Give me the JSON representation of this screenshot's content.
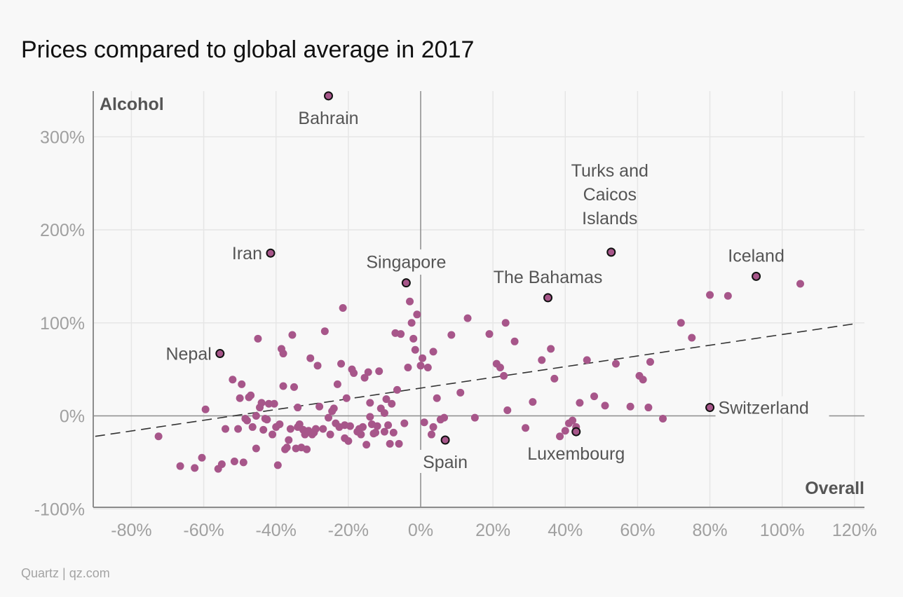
{
  "title": "Prices compared to global average in 2017",
  "source": "Quartz | qz.com",
  "colors": {
    "dot": "#a7568a",
    "highlight_dot": "#a7568a",
    "highlight_stroke": "#111111",
    "grid": "#e6e6e6",
    "axis": "#8c8c8c",
    "trend": "#333333"
  },
  "chart_data": {
    "type": "scatter",
    "title": "Prices compared to global average in 2017",
    "xlabel": "Overall",
    "ylabel": "Alcohol",
    "xlim": [
      -90,
      122
    ],
    "ylim": [
      -100,
      350
    ],
    "xticks": [
      -80,
      -60,
      -40,
      -20,
      0,
      20,
      40,
      60,
      80,
      100,
      120
    ],
    "yticks": [
      -100,
      0,
      100,
      200,
      300
    ],
    "xtick_labels": [
      "-80%",
      "-60%",
      "-40%",
      "-20%",
      "0%",
      "20%",
      "40%",
      "60%",
      "80%",
      "100%",
      "120%"
    ],
    "ytick_labels": [
      "-100%",
      "0%",
      "100%",
      "200%",
      "300%"
    ],
    "grid": true,
    "trendline": {
      "x": [
        -90,
        120
      ],
      "y": [
        -22,
        99
      ]
    },
    "labeled_points": [
      {
        "label": "Bahrain",
        "x": -25.5,
        "y": 344
      },
      {
        "label": "Iran",
        "x": -41.5,
        "y": 175
      },
      {
        "label": "Singapore",
        "x": -4,
        "y": 143
      },
      {
        "label": "Nepal",
        "x": -55.5,
        "y": 67
      },
      {
        "label": "Spain",
        "x": 6.8,
        "y": -26
      },
      {
        "label": "Luxembourg",
        "x": 43,
        "y": -17
      },
      {
        "label": "The Bahamas",
        "x": 35.2,
        "y": 127
      },
      {
        "label": "Turks and Caicos Islands",
        "x": 52.7,
        "y": 176
      },
      {
        "label": "Iceland",
        "x": 92.8,
        "y": 150
      },
      {
        "label": "Switzerland",
        "x": 80,
        "y": 9
      }
    ],
    "points": [
      [
        -72.5,
        -22
      ],
      [
        -66.5,
        -54
      ],
      [
        -62.5,
        -56
      ],
      [
        -60.5,
        -45
      ],
      [
        -59.5,
        7
      ],
      [
        -56,
        -57
      ],
      [
        -55,
        -52
      ],
      [
        -54,
        -14
      ],
      [
        -52,
        39
      ],
      [
        -51.5,
        -49
      ],
      [
        -50.5,
        -14
      ],
      [
        -50,
        19
      ],
      [
        -49.5,
        34
      ],
      [
        -49,
        -50
      ],
      [
        -48.5,
        -3
      ],
      [
        -48,
        -5
      ],
      [
        -47.5,
        20
      ],
      [
        -47,
        22
      ],
      [
        -46.5,
        -12
      ],
      [
        -45.5,
        -35
      ],
      [
        -45.5,
        0
      ],
      [
        -45,
        83
      ],
      [
        -44.5,
        9
      ],
      [
        -44,
        14
      ],
      [
        -43.5,
        -15
      ],
      [
        -43,
        -3
      ],
      [
        -42.5,
        -4
      ],
      [
        -42,
        13
      ],
      [
        -41,
        -20
      ],
      [
        -40.5,
        13
      ],
      [
        -40,
        -12
      ],
      [
        -39.5,
        -53
      ],
      [
        -39,
        -9
      ],
      [
        -38.5,
        72
      ],
      [
        -38,
        67
      ],
      [
        -38,
        32
      ],
      [
        -37.5,
        -36
      ],
      [
        -37,
        -34
      ],
      [
        -36.5,
        -26
      ],
      [
        -36,
        -14
      ],
      [
        -35.5,
        87
      ],
      [
        -35,
        31
      ],
      [
        -34.5,
        -35
      ],
      [
        -34,
        -12
      ],
      [
        -34,
        9
      ],
      [
        -33.5,
        -9
      ],
      [
        -33,
        -34
      ],
      [
        -32.5,
        -15
      ],
      [
        -32,
        -20
      ],
      [
        -31.5,
        -36
      ],
      [
        -31,
        -16
      ],
      [
        -30.5,
        62
      ],
      [
        -30,
        -20
      ],
      [
        -29.5,
        -18
      ],
      [
        -29,
        -14
      ],
      [
        -28.5,
        54
      ],
      [
        -28,
        10
      ],
      [
        -27,
        -14
      ],
      [
        -26.5,
        91
      ],
      [
        -25.5,
        -2
      ],
      [
        -25,
        -20
      ],
      [
        -24.5,
        5
      ],
      [
        -24,
        8
      ],
      [
        -23.5,
        -8
      ],
      [
        -23,
        34
      ],
      [
        -22.5,
        -12
      ],
      [
        -22,
        56
      ],
      [
        -21.5,
        116
      ],
      [
        -21,
        -24
      ],
      [
        -21,
        -10
      ],
      [
        -20.5,
        19
      ],
      [
        -20,
        -27
      ],
      [
        -19.5,
        -11
      ],
      [
        -19,
        50
      ],
      [
        -18.5,
        46
      ],
      [
        -17.5,
        -17
      ],
      [
        -17,
        -14
      ],
      [
        -16.5,
        -20
      ],
      [
        -16,
        -12
      ],
      [
        -15.5,
        41
      ],
      [
        -15,
        -31
      ],
      [
        -14.5,
        47
      ],
      [
        -14,
        -1
      ],
      [
        -14,
        14
      ],
      [
        -13.5,
        -9
      ],
      [
        -13,
        -19
      ],
      [
        -12.5,
        -18
      ],
      [
        -12,
        -11
      ],
      [
        -11.5,
        48
      ],
      [
        -11,
        8
      ],
      [
        -10,
        -17
      ],
      [
        -10,
        3
      ],
      [
        -9.5,
        18
      ],
      [
        -9,
        -10
      ],
      [
        -8.5,
        -30
      ],
      [
        -8,
        13
      ],
      [
        -7.5,
        -18
      ],
      [
        -7,
        89
      ],
      [
        -6.5,
        28
      ],
      [
        -6,
        -30
      ],
      [
        -5.5,
        88
      ],
      [
        -4.5,
        -8
      ],
      [
        -3.5,
        52
      ],
      [
        -3,
        123
      ],
      [
        -2.5,
        100
      ],
      [
        -2,
        83
      ],
      [
        -1.5,
        71
      ],
      [
        -1,
        109
      ],
      [
        0,
        54
      ],
      [
        0.5,
        62
      ],
      [
        1,
        -7
      ],
      [
        2,
        52
      ],
      [
        3,
        -20
      ],
      [
        3.5,
        69
      ],
      [
        3.5,
        -12
      ],
      [
        4.5,
        19
      ],
      [
        5.5,
        -4
      ],
      [
        6.5,
        -2
      ],
      [
        8.5,
        87
      ],
      [
        11,
        25
      ],
      [
        13,
        105
      ],
      [
        15,
        -2
      ],
      [
        19,
        88
      ],
      [
        21,
        56
      ],
      [
        22,
        52
      ],
      [
        23,
        43
      ],
      [
        23.5,
        100
      ],
      [
        24,
        6
      ],
      [
        26,
        80
      ],
      [
        29,
        -13
      ],
      [
        31,
        15
      ],
      [
        33.5,
        60
      ],
      [
        36,
        72
      ],
      [
        37,
        40
      ],
      [
        38.5,
        -22
      ],
      [
        40,
        -16
      ],
      [
        41,
        -8
      ],
      [
        42,
        -5
      ],
      [
        43,
        -12
      ],
      [
        44,
        14
      ],
      [
        46,
        60
      ],
      [
        48,
        21
      ],
      [
        51,
        11
      ],
      [
        54,
        56
      ],
      [
        58,
        10
      ],
      [
        60.5,
        43
      ],
      [
        61.5,
        39
      ],
      [
        63,
        9
      ],
      [
        63.5,
        58
      ],
      [
        67,
        -3
      ],
      [
        72,
        100
      ],
      [
        75,
        84
      ],
      [
        80,
        130
      ],
      [
        85,
        129
      ],
      [
        105,
        142
      ]
    ]
  }
}
